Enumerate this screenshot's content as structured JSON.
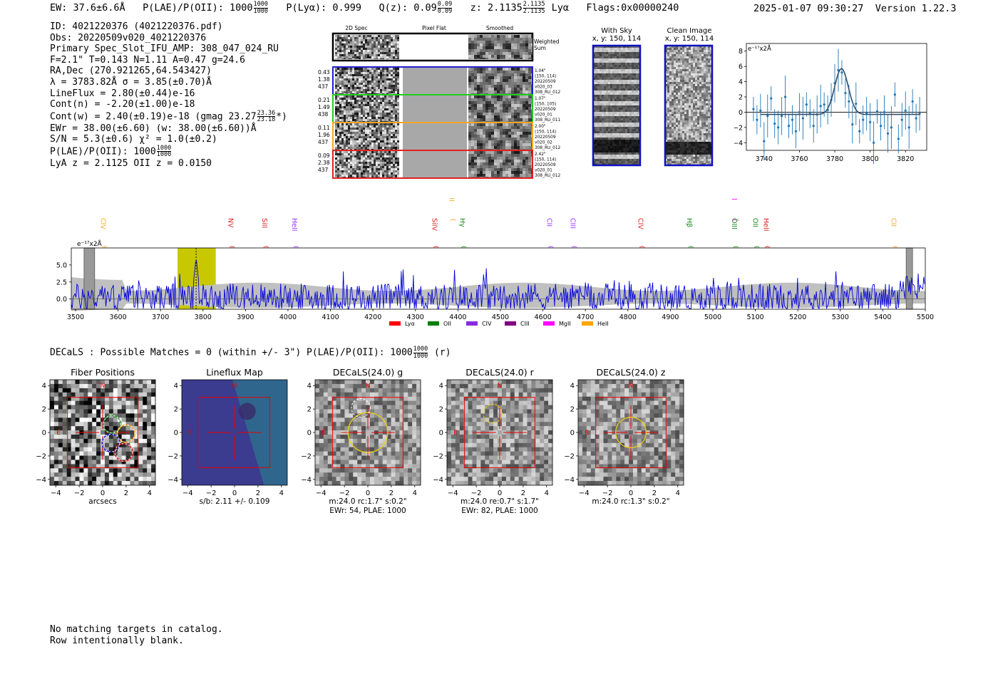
{
  "header": {
    "ew": "EW: 37.6±6.6Å",
    "plae_label": "P(LAE)/P(OII): 1000",
    "plae_hi": "1000",
    "plae_lo": "1000",
    "plya": "P(Lyα): 0.999",
    "qz_label": "Q(z): 0.09",
    "qz_hi": "0.09",
    "qz_lo": "0.09",
    "z_label": "z: 2.1135",
    "z_hi": "2.1135",
    "z_lo": "2.1135",
    "z_line": "Lyα",
    "flags": "Flags:0x00000240",
    "datetime": "2025-01-07 09:30:27",
    "version": "Version 1.22.3"
  },
  "info": {
    "id": "ID: 4021220376 (4021220376.pdf)",
    "obs": "Obs: 20220509v020_4021220376",
    "primary": "Primary Spec_Slot_IFU_AMP: 308_047_024_RU",
    "fparams": "F=2.1\"  T=0.143  N=1.11  A=0.47  g=24.6",
    "radec": "RA,Dec (270.921265,64.543427)",
    "lambda": "λ = 3783.82Å  σ = 3.85(±0.70)Å",
    "lineflux": "LineFlux = 2.80(±0.44)e-16",
    "contn": "Cont(n) = -2.20(±1.00)e-18",
    "contw_label": "Cont(w) = 2.40(±0.19)e-18 (gmag 23.27",
    "contw_hi": "23.36",
    "contw_lo": "23.18",
    "contw_tail": "*)",
    "ewr": "EWr = 38.00(±6.60) (w: 38.00(±6.60))Å",
    "sn": "S/N = 5.3(±0.6)  χ² = 1.0(±0.2)",
    "plae_label": "P(LAE)/P(OII): 1000",
    "plae_hi": "1000",
    "plae_lo": "1000",
    "lyaz": "LyA z = 2.1125  OII z = 0.0150"
  },
  "cutouts": {
    "col1": "2D Spec",
    "col2": "Pixel Flat",
    "col3": "Smoothed",
    "weighted": "Weighted Sum",
    "rows": [
      {
        "color": "#1f1fd0",
        "left": [
          "0.43",
          "1.38",
          "437"
        ],
        "right": [
          "1.04\"",
          "(150, 114)",
          "20220509",
          "v020_03",
          "308_RU_012"
        ]
      },
      {
        "color": "#22cc22",
        "left": [
          "0.21",
          "1.49",
          "438"
        ],
        "right": [
          "1.07\"",
          "(150, 105)",
          "20220509",
          "v020_01",
          "308_RU_011"
        ]
      },
      {
        "color": "#f5a623",
        "left": [
          "0.11",
          "1.96",
          "437"
        ],
        "right": [
          "2.00\"",
          "(150, 114)",
          "20220509",
          "v020_02",
          "308_RU_012"
        ]
      },
      {
        "color": "#e02020",
        "left": [
          "0.09",
          "2.38",
          "437"
        ],
        "right": [
          "2.42\"",
          "(150, 114)",
          "20220509",
          "v020_01",
          "308_RU_012"
        ]
      }
    ]
  },
  "sky": {
    "with_sky": "With Sky",
    "with_sky_xy": "x, y: 150, 114",
    "clean": "Clean Image",
    "clean_xy": "x, y: 150, 114"
  },
  "footer": {
    "decals": "DECaLS : Possible Matches = 0 (within +/- 3\")  P(LAE)/P(OII): 1000",
    "decals_hi": "1000",
    "decals_lo": "1000",
    "decals_tail": "(r)",
    "line1": "No matching targets in catalog.",
    "line2": "Row intentionally blank."
  },
  "chart_data": [
    {
      "type": "scatter",
      "name": "zoom-fit",
      "title": "",
      "ylabel": "e⁻¹⁷x2Å",
      "xlim": [
        3730,
        3832
      ],
      "ylim": [
        -5,
        9
      ],
      "xticks": [
        3740,
        3760,
        3780,
        3800,
        3820
      ],
      "yticks": [
        -4,
        -2,
        0,
        2,
        4,
        6,
        8
      ],
      "x": [
        3734,
        3736,
        3738,
        3740,
        3742,
        3744,
        3746,
        3748,
        3750,
        3752,
        3754,
        3756,
        3758,
        3760,
        3762,
        3764,
        3766,
        3768,
        3770,
        3772,
        3774,
        3776,
        3778,
        3780,
        3782,
        3784,
        3786,
        3788,
        3790,
        3792,
        3794,
        3796,
        3798,
        3800,
        3802,
        3804,
        3806,
        3808,
        3810,
        3812,
        3814,
        3816,
        3818,
        3820,
        3822,
        3824,
        3826,
        3828
      ],
      "y": [
        0.4,
        -1.0,
        0.2,
        -3.8,
        -0.5,
        1.8,
        -1.5,
        -2.0,
        -0.5,
        2.0,
        -1.8,
        -1.0,
        -2.5,
        0.0,
        -0.8,
        1.0,
        -0.2,
        -1.8,
        -0.3,
        0.8,
        1.0,
        0.3,
        1.6,
        3.8,
        5.5,
        5.2,
        2.5,
        1.4,
        -1.6,
        1.1,
        -2.5,
        -1.0,
        -0.2,
        -1.3,
        -4.0,
        0.1,
        -1.8,
        0.0,
        -2.8,
        -2.0,
        2.3,
        -3.5,
        -1.0,
        0.2,
        -2.0,
        1.4,
        -0.8,
        -0.2
      ],
      "fit_center": 3783.8,
      "fit_sigma": 3.85,
      "fit_amp": 6.0,
      "fit_base": -0.3
    },
    {
      "type": "line",
      "name": "full-spectrum",
      "ylabel": "e⁻¹⁷x2Å",
      "xlim": [
        3490,
        5500
      ],
      "ylim": [
        -1.5,
        7.5
      ],
      "xticks": [
        3500,
        3600,
        3700,
        3800,
        3900,
        4000,
        4100,
        4200,
        4300,
        4400,
        4500,
        4600,
        4700,
        4800,
        4900,
        5000,
        5100,
        5200,
        5300,
        5400,
        5500
      ],
      "yticks": [
        0.0,
        2.5,
        5.0
      ],
      "highlight_band": [
        3740,
        3830
      ],
      "emission_peak": 3783.8,
      "lines": [
        {
          "label": "CIV",
          "x": 3560,
          "color": "#f5a623",
          "tier": "low"
        },
        {
          "label": "NV",
          "x": 3860,
          "color": "#e02020",
          "tier": "mid"
        },
        {
          "label": "SiII",
          "x": 3940,
          "color": "#e02020",
          "tier": "mid"
        },
        {
          "label": "HeII",
          "x": 4010,
          "color": "#9b30ff",
          "tier": "mid"
        },
        {
          "label": "CIII",
          "x": 4380,
          "color": "#f5a623",
          "tier": "top"
        },
        {
          "label": "SiIV",
          "x": 4340,
          "color": "#e02020",
          "tier": "mid"
        },
        {
          "label": "Hγ",
          "x": 4405,
          "color": "#228b22",
          "tier": "mid"
        },
        {
          "label": "CII",
          "x": 4610,
          "color": "#9b30ff",
          "tier": "mid"
        },
        {
          "label": "CIII",
          "x": 4665,
          "color": "#9b30ff",
          "tier": "mid"
        },
        {
          "label": "CIV",
          "x": 4825,
          "color": "#e02020",
          "tier": "mid"
        },
        {
          "label": "Hβ",
          "x": 4940,
          "color": "#228b22",
          "tier": "mid"
        },
        {
          "label": "OII",
          "x": 5045,
          "color": "#ff00ff",
          "tier": "top"
        },
        {
          "label": "OIII",
          "x": 5045,
          "color": "#228b22",
          "tier": "mid"
        },
        {
          "label": "OII",
          "x": 5095,
          "color": "#228b22",
          "tier": "mid"
        },
        {
          "label": "HeII",
          "x": 5120,
          "color": "#e02020",
          "tier": "mid"
        },
        {
          "label": "CII",
          "x": 5420,
          "color": "#f5a623",
          "tier": "mid"
        }
      ],
      "legend": [
        {
          "label": "Lyα",
          "color": "#ff0000"
        },
        {
          "label": "OII",
          "color": "#008000"
        },
        {
          "label": "CIV",
          "color": "#8a2be2"
        },
        {
          "label": "CIII",
          "color": "#800080"
        },
        {
          "label": "MgII",
          "color": "#ff00ff"
        },
        {
          "label": "HeII",
          "color": "#ffa500"
        }
      ]
    },
    {
      "type": "heatmap",
      "name": "cutout-panels",
      "xlim": [
        -4.5,
        4.5
      ],
      "ylim": [
        -4.5,
        4.5
      ],
      "ticks": [
        -4,
        -2,
        0,
        2,
        4
      ],
      "panels": [
        {
          "title": "Fiber Positions",
          "caption1": "arcsecs",
          "caption2": ""
        },
        {
          "title": "Lineflux Map",
          "caption1": "s/b: 2.11 +/- 0.109",
          "caption2": ""
        },
        {
          "title": "DECaLS(24.0) g",
          "caption1": "m:24.0 rc:1.7\"  s:0.2\"",
          "caption2": "EWr: 54, PLAE: 1000"
        },
        {
          "title": "DECaLS(24.0) r",
          "caption1": "m:24.0  re:0.7\"  s:1.7\"",
          "caption2": "EWr: 82, PLAE: 1000"
        },
        {
          "title": "DECaLS(24.0) z",
          "caption1": "m:24.0 rc:1.3\"  s:0.2\"",
          "caption2": ""
        }
      ]
    }
  ]
}
